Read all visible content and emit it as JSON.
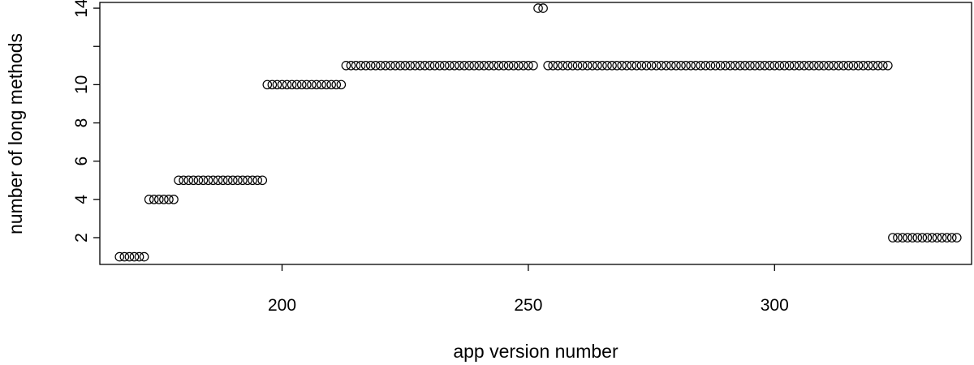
{
  "chart_data": {
    "type": "scatter",
    "title": "",
    "xlabel": "app version number",
    "ylabel": "number of long methods",
    "xlim": [
      163,
      340
    ],
    "ylim": [
      0.6,
      14.3
    ],
    "xticks": [
      200,
      250,
      300
    ],
    "yticks": [
      2,
      4,
      6,
      8,
      10,
      12,
      14
    ],
    "ytick_labels": [
      "2",
      "4",
      "6",
      "8",
      "10",
      "",
      "14"
    ],
    "grid": false,
    "marker": "open-circle",
    "marker_color": "#000000",
    "series": [
      {
        "x_start": 167,
        "x_end": 172,
        "y": 1
      },
      {
        "x_start": 173,
        "x_end": 178,
        "y": 4
      },
      {
        "x_start": 179,
        "x_end": 196,
        "y": 5
      },
      {
        "x_start": 197,
        "x_end": 212,
        "y": 10
      },
      {
        "x_start": 213,
        "x_end": 251,
        "y": 11
      },
      {
        "x_start": 252,
        "x_end": 253,
        "y": 14
      },
      {
        "x_start": 254,
        "x_end": 323,
        "y": 11
      },
      {
        "x_start": 324,
        "x_end": 337,
        "y": 2
      }
    ]
  }
}
